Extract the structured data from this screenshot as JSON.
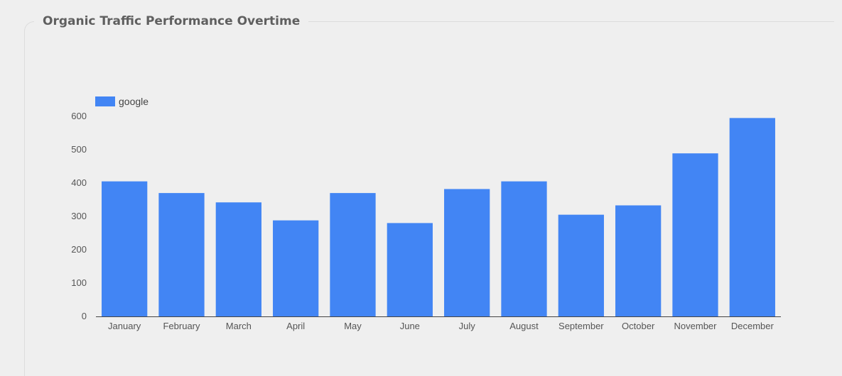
{
  "chart_data": {
    "type": "bar",
    "title": "Organic Traffic Performance Overtime",
    "categories": [
      "January",
      "February",
      "March",
      "April",
      "May",
      "June",
      "July",
      "August",
      "September",
      "October",
      "November",
      "December"
    ],
    "series": [
      {
        "name": "google",
        "values": [
          405,
          370,
          342,
          288,
          370,
          280,
          382,
          405,
          305,
          333,
          489,
          595
        ],
        "color": "#4285f4"
      }
    ],
    "ylim": [
      0,
      600
    ],
    "yticks": [
      0,
      100,
      200,
      300,
      400,
      500,
      600
    ],
    "grid": false,
    "legend": "top-left"
  }
}
